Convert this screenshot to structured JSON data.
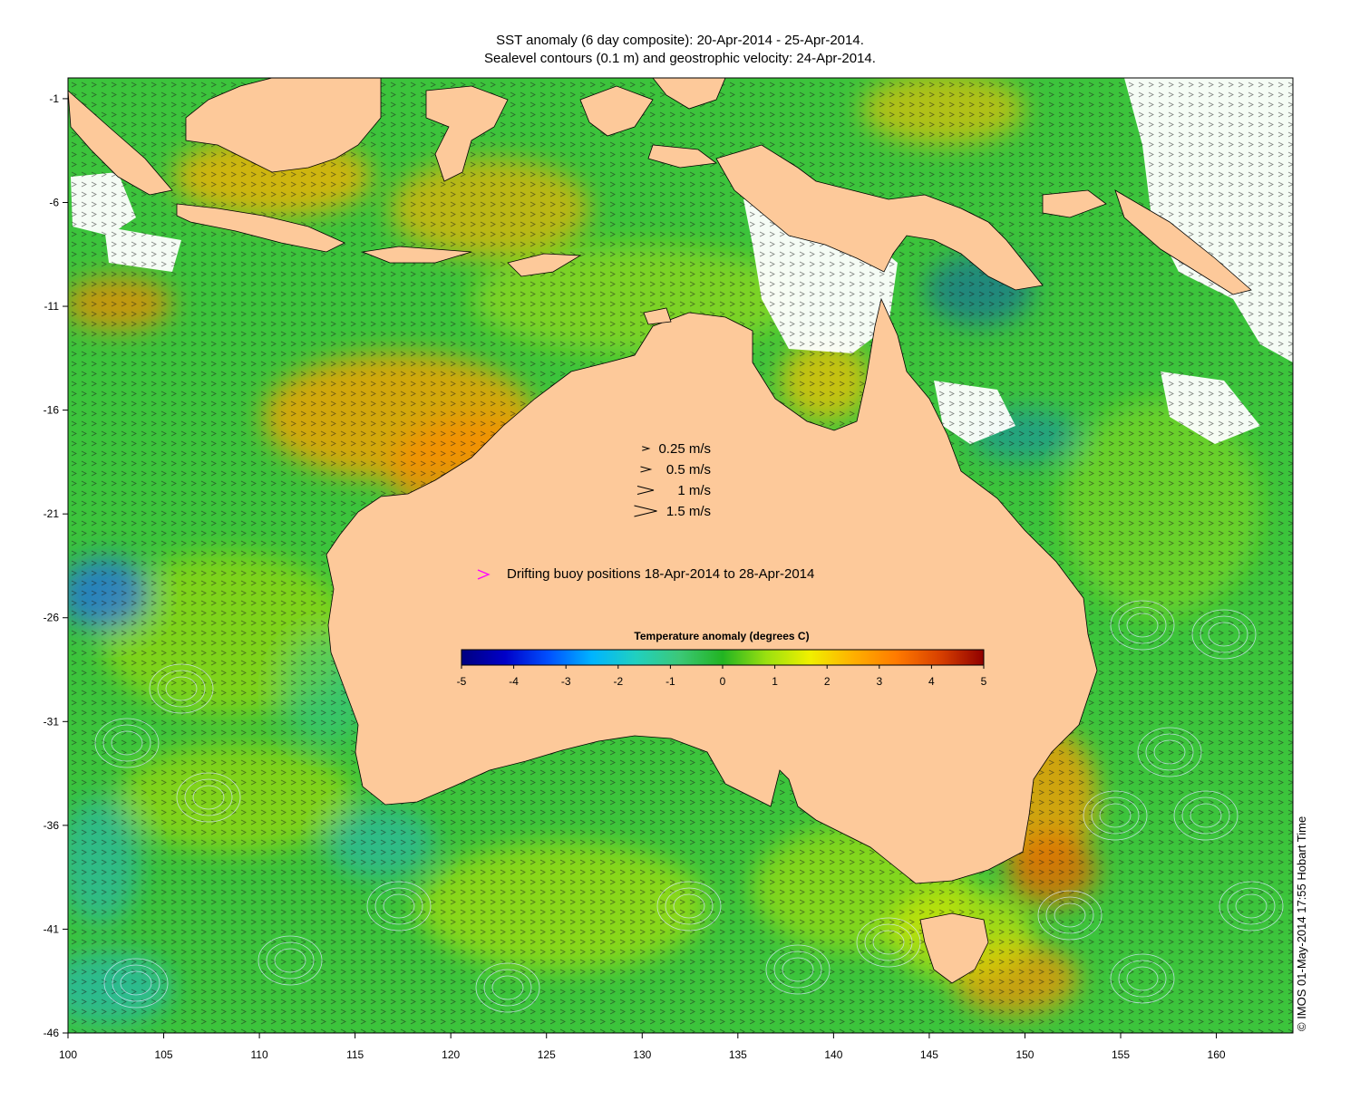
{
  "title": {
    "line1": "SST anomaly (6 day composite): 20-Apr-2014 - 25-Apr-2014.",
    "line2": "Sealevel contours (0.1 m) and geostrophic velocity: 24-Apr-2014."
  },
  "axes": {
    "lon_ticks": [
      "100",
      "105",
      "110",
      "115",
      "120",
      "125",
      "130",
      "135",
      "140",
      "145",
      "150",
      "155",
      "160"
    ],
    "lat_ticks": [
      "-1",
      "-6",
      "-11",
      "-16",
      "-21",
      "-26",
      "-31",
      "-36",
      "-41",
      "-46"
    ],
    "lon_range": [
      100,
      164
    ],
    "lat_range": [
      -46,
      0
    ]
  },
  "velocity_legend": {
    "items": [
      {
        "label": "0.25 m/s",
        "speed": 0.25
      },
      {
        "label": "0.5 m/s",
        "speed": 0.5
      },
      {
        "label": "1 m/s",
        "speed": 1
      },
      {
        "label": "1.5 m/s",
        "speed": 1.5
      }
    ]
  },
  "buoy_legend": {
    "label": "Drifting buoy positions 18-Apr-2014 to 28-Apr-2014",
    "marker_color": "#ff00ff"
  },
  "colorbar": {
    "title": "Temperature anomaly (degrees C)",
    "ticks": [
      "-5",
      "-4",
      "-3",
      "-2",
      "-1",
      "0",
      "1",
      "2",
      "3",
      "4",
      "5"
    ],
    "range": [
      -5,
      5
    ],
    "colors": [
      "#00007f",
      "#0000c8",
      "#0050ff",
      "#00b4ff",
      "#20d0c0",
      "#3cc878",
      "#22b422",
      "#9ae010",
      "#f0f000",
      "#ffb000",
      "#ff7a00",
      "#d84000",
      "#900000"
    ]
  },
  "copyright": "© IMOS 01-May-2014 17:55 Hobart Time",
  "colors": {
    "land": "#fdc99a",
    "ocean_base": "#3cc43c",
    "contour": "#d8e8ff",
    "cloud": "#ffffff"
  }
}
